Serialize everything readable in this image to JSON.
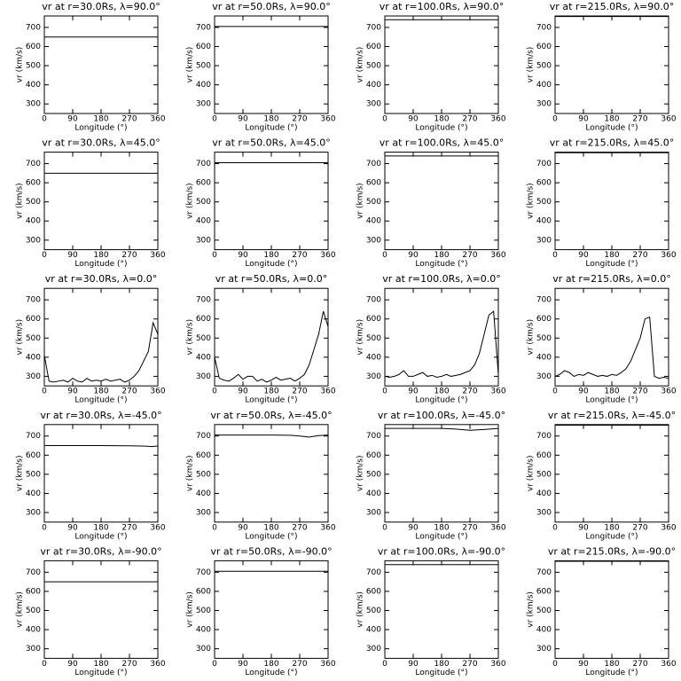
{
  "chart_data": [
    {
      "type": "line",
      "title": "vr at r=30.0Rs, λ=90.0°",
      "xlabel": "Longitude (°)",
      "ylabel": "vr (km/s)",
      "x": [
        0,
        360
      ],
      "values": [
        650,
        650
      ],
      "color": "#000000",
      "xlim": [
        0,
        360
      ],
      "ylim": [
        250,
        760
      ],
      "xticks": [
        0,
        90,
        180,
        270,
        360
      ],
      "yticks": [
        300,
        400,
        500,
        600,
        700
      ]
    },
    {
      "type": "line",
      "title": "vr at r=50.0Rs, λ=90.0°",
      "xlabel": "Longitude (°)",
      "ylabel": "vr (km/s)",
      "x": [
        0,
        360
      ],
      "values": [
        705,
        705
      ],
      "color": "#000000",
      "xlim": [
        0,
        360
      ],
      "ylim": [
        250,
        760
      ],
      "xticks": [
        0,
        90,
        180,
        270,
        360
      ],
      "yticks": [
        300,
        400,
        500,
        600,
        700
      ]
    },
    {
      "type": "line",
      "title": "vr at r=100.0Rs, λ=90.0°",
      "xlabel": "Longitude (°)",
      "ylabel": "vr (km/s)",
      "x": [
        0,
        360
      ],
      "values": [
        740,
        740
      ],
      "color": "#000000",
      "xlim": [
        0,
        360
      ],
      "ylim": [
        250,
        760
      ],
      "xticks": [
        0,
        90,
        180,
        270,
        360
      ],
      "yticks": [
        300,
        400,
        500,
        600,
        700
      ]
    },
    {
      "type": "line",
      "title": "vr at r=215.0Rs, λ=90.0°",
      "xlabel": "Longitude (°)",
      "ylabel": "vr (km/s)",
      "x": [
        0,
        360
      ],
      "values": [
        757,
        757
      ],
      "color": "#000000",
      "xlim": [
        0,
        360
      ],
      "ylim": [
        250,
        760
      ],
      "xticks": [
        0,
        90,
        180,
        270,
        360
      ],
      "yticks": [
        300,
        400,
        500,
        600,
        700
      ]
    },
    {
      "type": "line",
      "title": "vr at r=30.0Rs, λ=45.0°",
      "xlabel": "Longitude (°)",
      "ylabel": "vr (km/s)",
      "x": [
        0,
        360
      ],
      "values": [
        650,
        650
      ],
      "color": "#000000",
      "xlim": [
        0,
        360
      ],
      "ylim": [
        250,
        760
      ],
      "xticks": [
        0,
        90,
        180,
        270,
        360
      ],
      "yticks": [
        300,
        400,
        500,
        600,
        700
      ]
    },
    {
      "type": "line",
      "title": "vr at r=50.0Rs, λ=45.0°",
      "xlabel": "Longitude (°)",
      "ylabel": "vr (km/s)",
      "x": [
        0,
        360
      ],
      "values": [
        705,
        705
      ],
      "color": "#000000",
      "xlim": [
        0,
        360
      ],
      "ylim": [
        250,
        760
      ],
      "xticks": [
        0,
        90,
        180,
        270,
        360
      ],
      "yticks": [
        300,
        400,
        500,
        600,
        700
      ]
    },
    {
      "type": "line",
      "title": "vr at r=100.0Rs, λ=45.0°",
      "xlabel": "Longitude (°)",
      "ylabel": "vr (km/s)",
      "x": [
        0,
        360
      ],
      "values": [
        740,
        740
      ],
      "color": "#000000",
      "xlim": [
        0,
        360
      ],
      "ylim": [
        250,
        760
      ],
      "xticks": [
        0,
        90,
        180,
        270,
        360
      ],
      "yticks": [
        300,
        400,
        500,
        600,
        700
      ]
    },
    {
      "type": "line",
      "title": "vr at r=215.0Rs, λ=45.0°",
      "xlabel": "Longitude (°)",
      "ylabel": "vr (km/s)",
      "x": [
        0,
        360
      ],
      "values": [
        757,
        757
      ],
      "color": "#000000",
      "xlim": [
        0,
        360
      ],
      "ylim": [
        250,
        760
      ],
      "xticks": [
        0,
        90,
        180,
        270,
        360
      ],
      "yticks": [
        300,
        400,
        500,
        600,
        700
      ]
    },
    {
      "type": "line",
      "title": "vr at r=30.0Rs, λ=0.0°",
      "xlabel": "Longitude (°)",
      "ylabel": "vr (km/s)",
      "x": [
        0,
        15,
        30,
        45,
        60,
        75,
        90,
        105,
        120,
        135,
        150,
        165,
        180,
        195,
        210,
        225,
        240,
        255,
        270,
        285,
        300,
        315,
        330,
        345,
        360
      ],
      "values": [
        410,
        275,
        270,
        275,
        280,
        270,
        290,
        275,
        270,
        290,
        275,
        280,
        275,
        285,
        275,
        280,
        285,
        270,
        280,
        300,
        330,
        380,
        430,
        580,
        520
      ],
      "color": "#000000",
      "xlim": [
        0,
        360
      ],
      "ylim": [
        250,
        760
      ],
      "xticks": [
        0,
        90,
        180,
        270,
        360
      ],
      "yticks": [
        300,
        400,
        500,
        600,
        700
      ]
    },
    {
      "type": "line",
      "title": "vr at r=50.0Rs, λ=0.0°",
      "xlabel": "Longitude (°)",
      "ylabel": "vr (km/s)",
      "x": [
        0,
        15,
        30,
        45,
        60,
        75,
        90,
        105,
        120,
        135,
        150,
        165,
        180,
        195,
        210,
        225,
        240,
        255,
        270,
        285,
        300,
        315,
        330,
        345,
        360
      ],
      "values": [
        400,
        290,
        280,
        275,
        290,
        310,
        285,
        300,
        300,
        275,
        285,
        270,
        280,
        295,
        280,
        285,
        290,
        275,
        290,
        310,
        360,
        440,
        520,
        640,
        560
      ],
      "color": "#000000",
      "xlim": [
        0,
        360
      ],
      "ylim": [
        250,
        760
      ],
      "xticks": [
        0,
        90,
        180,
        270,
        360
      ],
      "yticks": [
        300,
        400,
        500,
        600,
        700
      ]
    },
    {
      "type": "line",
      "title": "vr at r=100.0Rs, λ=0.0°",
      "xlabel": "Longitude (°)",
      "ylabel": "vr (km/s)",
      "x": [
        0,
        15,
        30,
        45,
        60,
        75,
        90,
        105,
        120,
        135,
        150,
        165,
        180,
        195,
        210,
        225,
        240,
        255,
        270,
        285,
        300,
        315,
        330,
        345,
        360
      ],
      "values": [
        300,
        295,
        300,
        310,
        330,
        300,
        300,
        310,
        320,
        300,
        305,
        295,
        300,
        310,
        300,
        305,
        310,
        320,
        330,
        360,
        420,
        520,
        620,
        640,
        310
      ],
      "color": "#000000",
      "xlim": [
        0,
        360
      ],
      "ylim": [
        250,
        760
      ],
      "xticks": [
        0,
        90,
        180,
        270,
        360
      ],
      "yticks": [
        300,
        400,
        500,
        600,
        700
      ]
    },
    {
      "type": "line",
      "title": "vr at r=215.0Rs, λ=0.0°",
      "xlabel": "Longitude (°)",
      "ylabel": "vr (km/s)",
      "x": [
        0,
        15,
        30,
        45,
        60,
        75,
        90,
        105,
        120,
        135,
        150,
        165,
        180,
        195,
        210,
        225,
        240,
        255,
        270,
        285,
        300,
        315,
        330,
        345,
        360
      ],
      "values": [
        300,
        310,
        330,
        320,
        300,
        310,
        305,
        320,
        310,
        300,
        305,
        300,
        310,
        305,
        320,
        340,
        380,
        440,
        500,
        600,
        610,
        300,
        290,
        295,
        290
      ],
      "color": "#000000",
      "xlim": [
        0,
        360
      ],
      "ylim": [
        250,
        760
      ],
      "xticks": [
        0,
        90,
        180,
        270,
        360
      ],
      "yticks": [
        300,
        400,
        500,
        600,
        700
      ]
    },
    {
      "type": "line",
      "title": "vr at r=30.0Rs, λ=-45.0°",
      "xlabel": "Longitude (°)",
      "ylabel": "vr (km/s)",
      "x": [
        0,
        90,
        180,
        270,
        320,
        340,
        360
      ],
      "values": [
        650,
        650,
        650,
        649,
        647,
        645,
        648
      ],
      "color": "#000000",
      "xlim": [
        0,
        360
      ],
      "ylim": [
        250,
        760
      ],
      "xticks": [
        0,
        90,
        180,
        270,
        360
      ],
      "yticks": [
        300,
        400,
        500,
        600,
        700
      ]
    },
    {
      "type": "line",
      "title": "vr at r=50.0Rs, λ=-45.0°",
      "xlabel": "Longitude (°)",
      "ylabel": "vr (km/s)",
      "x": [
        0,
        90,
        180,
        240,
        270,
        300,
        330,
        360
      ],
      "values": [
        705,
        705,
        705,
        704,
        700,
        695,
        702,
        705
      ],
      "color": "#000000",
      "xlim": [
        0,
        360
      ],
      "ylim": [
        250,
        760
      ],
      "xticks": [
        0,
        90,
        180,
        270,
        360
      ],
      "yticks": [
        300,
        400,
        500,
        600,
        700
      ]
    },
    {
      "type": "line",
      "title": "vr at r=100.0Rs, λ=-45.0°",
      "xlabel": "Longitude (°)",
      "ylabel": "vr (km/s)",
      "x": [
        0,
        90,
        180,
        220,
        270,
        320,
        360
      ],
      "values": [
        740,
        740,
        740,
        737,
        730,
        735,
        740
      ],
      "color": "#000000",
      "xlim": [
        0,
        360
      ],
      "ylim": [
        250,
        760
      ],
      "xticks": [
        0,
        90,
        180,
        270,
        360
      ],
      "yticks": [
        300,
        400,
        500,
        600,
        700
      ]
    },
    {
      "type": "line",
      "title": "vr at r=215.0Rs, λ=-45.0°",
      "xlabel": "Longitude (°)",
      "ylabel": "vr (km/s)",
      "x": [
        0,
        360
      ],
      "values": [
        757,
        757
      ],
      "color": "#000000",
      "xlim": [
        0,
        360
      ],
      "ylim": [
        250,
        760
      ],
      "xticks": [
        0,
        90,
        180,
        270,
        360
      ],
      "yticks": [
        300,
        400,
        500,
        600,
        700
      ]
    },
    {
      "type": "line",
      "title": "vr at r=30.0Rs, λ=-90.0°",
      "xlabel": "Longitude (°)",
      "ylabel": "vr (km/s)",
      "x": [
        0,
        360
      ],
      "values": [
        650,
        650
      ],
      "color": "#000000",
      "xlim": [
        0,
        360
      ],
      "ylim": [
        250,
        760
      ],
      "xticks": [
        0,
        90,
        180,
        270,
        360
      ],
      "yticks": [
        300,
        400,
        500,
        600,
        700
      ]
    },
    {
      "type": "line",
      "title": "vr at r=50.0Rs, λ=-90.0°",
      "xlabel": "Longitude (°)",
      "ylabel": "vr (km/s)",
      "x": [
        0,
        360
      ],
      "values": [
        705,
        705
      ],
      "color": "#000000",
      "xlim": [
        0,
        360
      ],
      "ylim": [
        250,
        760
      ],
      "xticks": [
        0,
        90,
        180,
        270,
        360
      ],
      "yticks": [
        300,
        400,
        500,
        600,
        700
      ]
    },
    {
      "type": "line",
      "title": "vr at r=100.0Rs, λ=-90.0°",
      "xlabel": "Longitude (°)",
      "ylabel": "vr (km/s)",
      "x": [
        0,
        360
      ],
      "values": [
        740,
        740
      ],
      "color": "#000000",
      "xlim": [
        0,
        360
      ],
      "ylim": [
        250,
        760
      ],
      "xticks": [
        0,
        90,
        180,
        270,
        360
      ],
      "yticks": [
        300,
        400,
        500,
        600,
        700
      ]
    },
    {
      "type": "line",
      "title": "vr at r=215.0Rs, λ=-90.0°",
      "xlabel": "Longitude (°)",
      "ylabel": "vr (km/s)",
      "x": [
        0,
        360
      ],
      "values": [
        757,
        757
      ],
      "color": "#000000",
      "xlim": [
        0,
        360
      ],
      "ylim": [
        250,
        760
      ],
      "xticks": [
        0,
        90,
        180,
        270,
        360
      ],
      "yticks": [
        300,
        400,
        500,
        600,
        700
      ]
    }
  ]
}
